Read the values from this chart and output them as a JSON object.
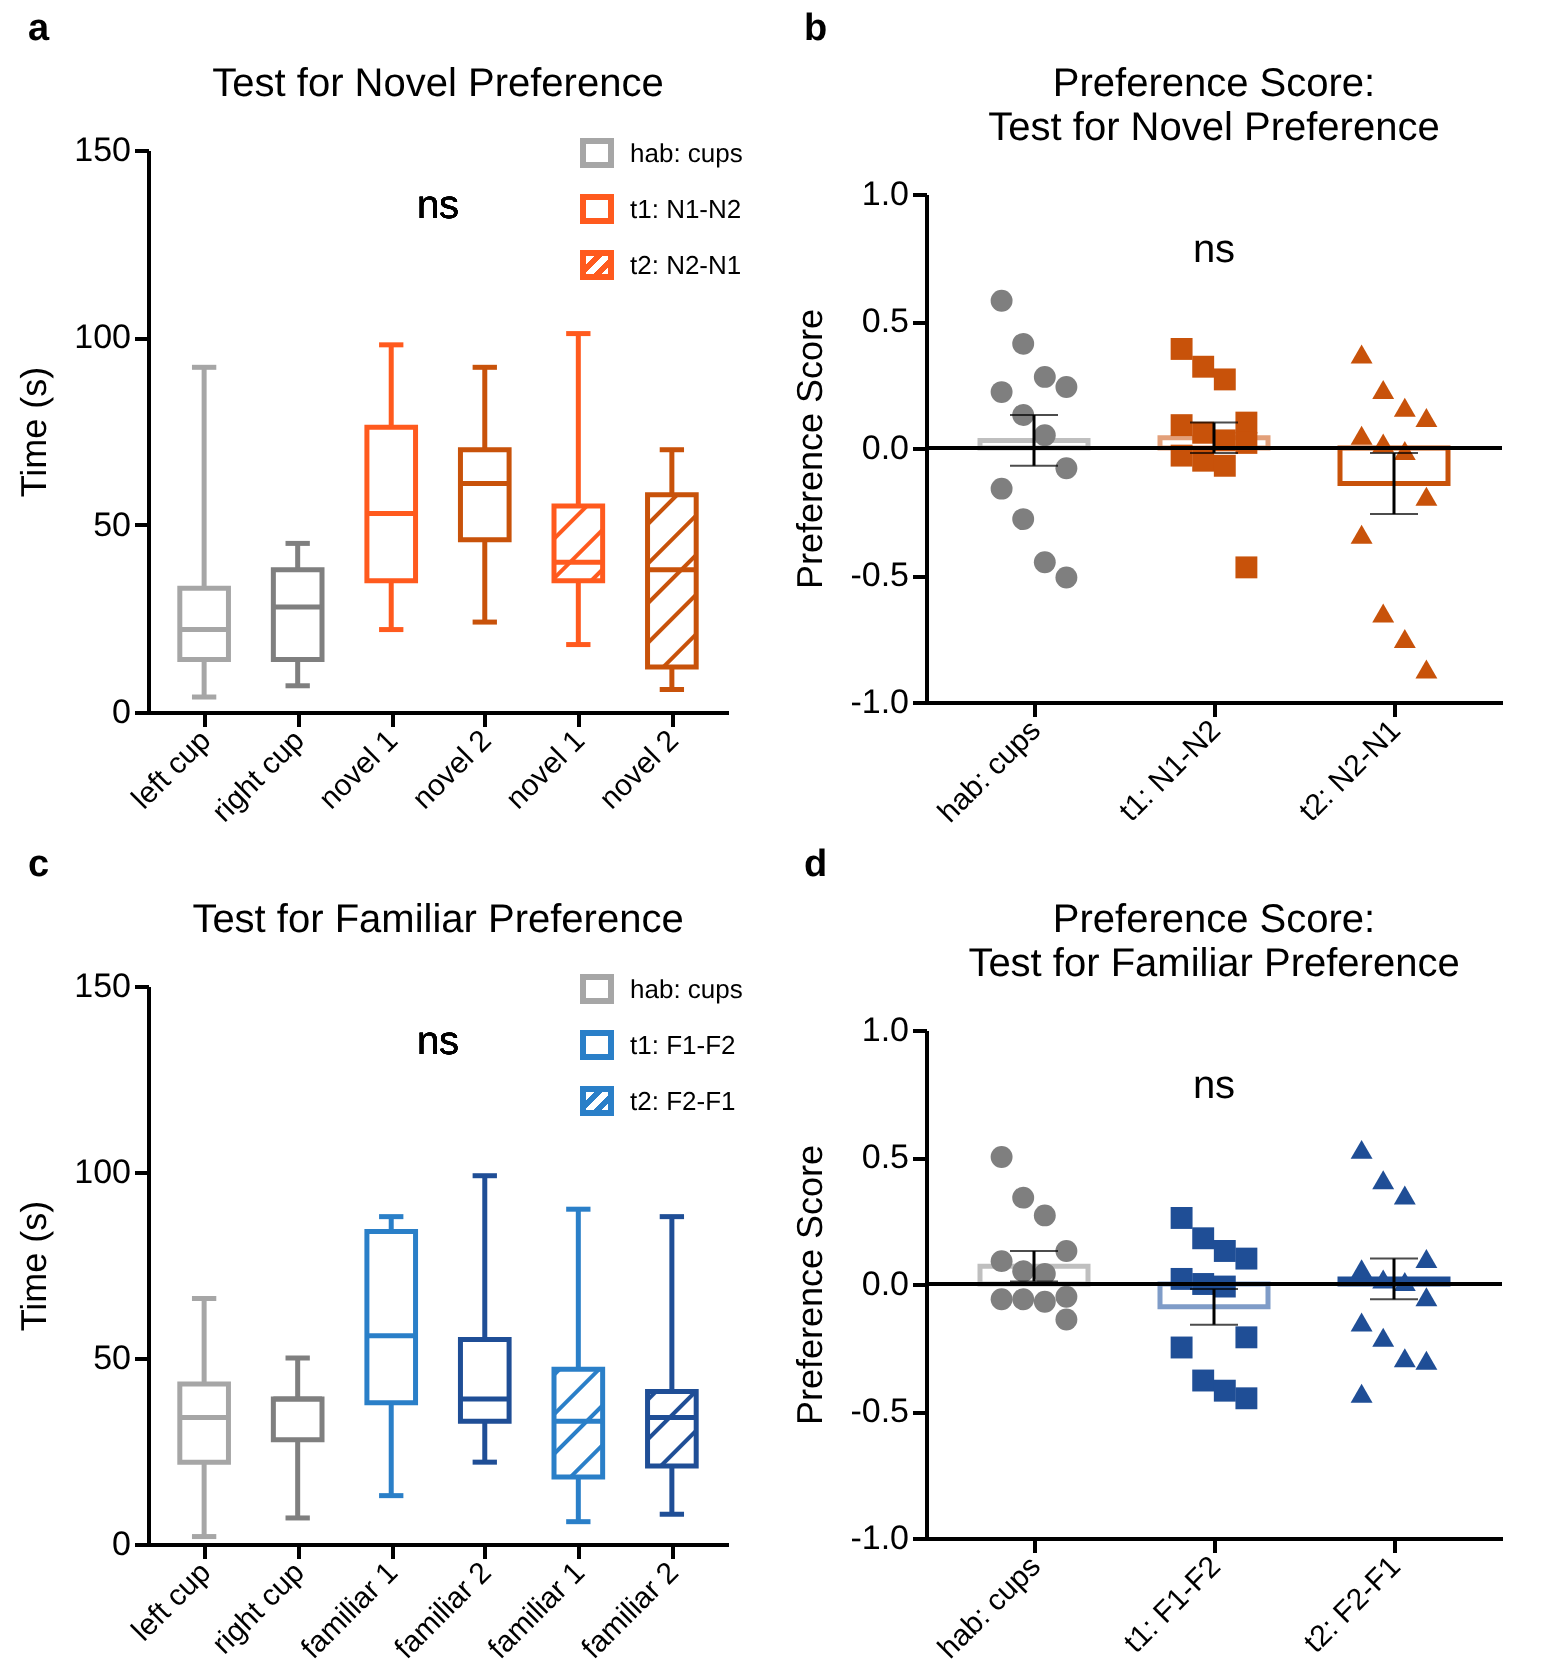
{
  "chart_data": [
    {
      "type": "box",
      "title": "Test for Novel Preference",
      "ylabel": "Time (s)",
      "categories": [
        "left cup",
        "right cup",
        "novel 1",
        "novel 2",
        "novel 1",
        "novel 2"
      ],
      "ylim": [
        0,
        150
      ],
      "yticks": [
        0,
        50,
        100,
        150
      ],
      "legend": "top right",
      "annotations": [
        "a",
        "ns"
      ],
      "series": [
        {
          "name": "hab: cups",
          "colors": [
            "#a6a6a6",
            "#7f7f7f",
            null,
            null,
            null,
            null
          ],
          "boxes": [
            {
              "low": 4,
              "q1": 14,
              "median": 22,
              "q3": 33,
              "high": 92
            },
            {
              "low": 7,
              "q1": 14,
              "median": 28,
              "q3": 38,
              "high": 45
            },
            null,
            null,
            null,
            null
          ]
        },
        {
          "name": "t1: N1-N2",
          "colors": [
            null,
            null,
            "#ff5a1e",
            "#c8520a",
            null,
            null
          ],
          "boxes": [
            null,
            null,
            {
              "low": 22,
              "q1": 35,
              "median": 53,
              "q3": 76,
              "high": 98
            },
            {
              "low": 24,
              "q1": 46,
              "median": 61,
              "q3": 70,
              "high": 92
            },
            null,
            null
          ]
        },
        {
          "name": "t2: N2-N1",
          "colors": [
            null,
            null,
            null,
            null,
            "#ff5a1e",
            "#c8520a"
          ],
          "boxes": [
            null,
            null,
            null,
            null,
            {
              "low": 18,
              "q1": 35,
              "median": 40,
              "q3": 55,
              "high": 101
            },
            {
              "low": 6,
              "q1": 12,
              "median": 38,
              "q3": 58,
              "high": 70
            }
          ]
        }
      ]
    },
    {
      "type": "bar",
      "title": "Preference Score:\nTest for Novel Preference",
      "ylabel": "Preference Score",
      "categories": [
        "hab: cups",
        "t1: N1-N2",
        "t2: N2-N1"
      ],
      "ylim": [
        -1,
        1
      ],
      "yticks": [
        {
          "value": -1,
          "label": "-1.0"
        },
        {
          "value": -0.5,
          "label": "-0.5"
        },
        {
          "value": 0,
          "label": "0.0"
        },
        {
          "value": 0.5,
          "label": "0.5"
        },
        {
          "value": 1,
          "label": "1.0"
        }
      ],
      "ref_lines": [
        {
          "axis": "y",
          "value": 0
        }
      ],
      "annotations": [
        "b",
        "ns"
      ],
      "series": [
        {
          "type": "bar",
          "colors": [
            "#bfbfbf",
            "#e3a07a",
            "#c8520a"
          ],
          "values": [
            0.03,
            0.04,
            -0.14
          ],
          "errors": [
            0.1,
            0.06,
            0.12
          ]
        },
        {
          "type": "scatter",
          "marker": "circle",
          "color": "#7f7f7f",
          "x": [
            "hab: cups",
            "hab: cups",
            "hab: cups",
            "hab: cups",
            "hab: cups",
            "hab: cups",
            "hab: cups",
            "hab: cups",
            "hab: cups",
            "hab: cups",
            "hab: cups",
            "hab: cups"
          ],
          "values": [
            0.58,
            0.41,
            0.28,
            0.24,
            0.22,
            0.13,
            0.05,
            -0.08,
            -0.16,
            -0.28,
            -0.45,
            -0.51
          ]
        },
        {
          "type": "scatter",
          "marker": "square",
          "color": "#c8520a",
          "x": [
            "t1: N1-N2",
            "t1: N1-N2",
            "t1: N1-N2",
            "t1: N1-N2",
            "t1: N1-N2",
            "t1: N1-N2",
            "t1: N1-N2",
            "t1: N1-N2",
            "t1: N1-N2",
            "t1: N1-N2",
            "t1: N1-N2",
            "t1: N1-N2"
          ],
          "values": [
            0.39,
            0.32,
            0.27,
            0.1,
            0.09,
            0.06,
            0.03,
            0.02,
            -0.03,
            -0.05,
            -0.07,
            -0.47
          ]
        },
        {
          "type": "scatter",
          "marker": "triangle",
          "color": "#c8520a",
          "x": [
            "t2: N2-N1",
            "t2: N2-N1",
            "t2: N2-N1",
            "t2: N2-N1",
            "t2: N2-N1",
            "t2: N2-N1",
            "t2: N2-N1",
            "t2: N2-N1",
            "t2: N2-N1",
            "t2: N2-N1",
            "t2: N2-N1",
            "t2: N2-N1"
          ],
          "values": [
            0.37,
            0.23,
            0.16,
            0.12,
            0.05,
            0.02,
            -0.01,
            -0.19,
            -0.34,
            -0.65,
            -0.75,
            -0.87
          ]
        }
      ]
    },
    {
      "type": "box",
      "title": "Test for Familiar Preference",
      "ylabel": "Time (s)",
      "categories": [
        "left cup",
        "right cup",
        "familiar 1",
        "familiar 2",
        "familiar 1",
        "familiar 2"
      ],
      "ylim": [
        0,
        150
      ],
      "yticks": [
        0,
        50,
        100,
        150
      ],
      "legend": "top right",
      "annotations": [
        "c",
        "ns"
      ],
      "series": [
        {
          "name": "hab: cups",
          "colors": [
            "#a6a6a6",
            "#7f7f7f",
            null,
            null,
            null,
            null
          ],
          "boxes": [
            {
              "low": 2,
              "q1": 22,
              "median": 34,
              "q3": 43,
              "high": 66
            },
            {
              "low": 7,
              "q1": 28,
              "median": 39,
              "q3": 39,
              "high": 50
            },
            null,
            null,
            null,
            null
          ]
        },
        {
          "name": "t1: F1-F2",
          "colors": [
            null,
            null,
            "#2a7fc8",
            "#1f4e96",
            null,
            null
          ],
          "boxes": [
            null,
            null,
            {
              "low": 13,
              "q1": 38,
              "median": 56,
              "q3": 84,
              "high": 88
            },
            {
              "low": 22,
              "q1": 33,
              "median": 39,
              "q3": 55,
              "high": 99
            },
            null,
            null
          ]
        },
        {
          "name": "t2: F2-F1",
          "colors": [
            null,
            null,
            null,
            null,
            "#2a7fc8",
            "#1f4e96"
          ],
          "boxes": [
            null,
            null,
            null,
            null,
            {
              "low": 6,
              "q1": 18,
              "median": 33,
              "q3": 47,
              "high": 90
            },
            {
              "low": 8,
              "q1": 21,
              "median": 34,
              "q3": 41,
              "high": 88
            }
          ]
        }
      ]
    },
    {
      "type": "bar",
      "title": "Preference Score:\nTest for Familiar Preference",
      "ylabel": "Preference Score",
      "categories": [
        "hab: cups",
        "t1: F1-F2",
        "t2: F2-F1"
      ],
      "ylim": [
        -1,
        1
      ],
      "yticks": [
        {
          "value": -1,
          "label": "-1.0"
        },
        {
          "value": -0.5,
          "label": "-0.5"
        },
        {
          "value": 0,
          "label": "0.0"
        },
        {
          "value": 0.5,
          "label": "0.5"
        },
        {
          "value": 1,
          "label": "1.0"
        }
      ],
      "ref_lines": [
        {
          "axis": "y",
          "value": 0
        }
      ],
      "annotations": [
        "d",
        "ns"
      ],
      "series": [
        {
          "type": "bar",
          "colors": [
            "#bfbfbf",
            "#7f9cc8",
            "#1f4e96"
          ],
          "values": [
            0.07,
            -0.09,
            0.02
          ],
          "errors": [
            0.06,
            0.07,
            0.08
          ]
        },
        {
          "type": "scatter",
          "marker": "circle",
          "color": "#7f7f7f",
          "x": [
            "hab: cups",
            "hab: cups",
            "hab: cups",
            "hab: cups",
            "hab: cups",
            "hab: cups",
            "hab: cups",
            "hab: cups",
            "hab: cups",
            "hab: cups",
            "hab: cups",
            "hab: cups"
          ],
          "values": [
            0.5,
            0.34,
            0.27,
            0.13,
            0.09,
            0.05,
            0.04,
            -0.05,
            -0.06,
            -0.06,
            -0.07,
            -0.14
          ]
        },
        {
          "type": "scatter",
          "marker": "square",
          "color": "#1f4e96",
          "x": [
            "t1: F1-F2",
            "t1: F1-F2",
            "t1: F1-F2",
            "t1: F1-F2",
            "t1: F1-F2",
            "t1: F1-F2",
            "t1: F1-F2",
            "t1: F1-F2",
            "t1: F1-F2",
            "t1: F1-F2",
            "t1: F1-F2",
            "t1: F1-F2"
          ],
          "values": [
            0.26,
            0.18,
            0.13,
            0.1,
            0.02,
            0.0,
            -0.01,
            -0.21,
            -0.25,
            -0.38,
            -0.42,
            -0.45
          ]
        },
        {
          "type": "scatter",
          "marker": "triangle",
          "color": "#1f4e96",
          "x": [
            "t2: F2-F1",
            "t2: F2-F1",
            "t2: F2-F1",
            "t2: F2-F1",
            "t2: F2-F1",
            "t2: F2-F1",
            "t2: F2-F1",
            "t2: F2-F1",
            "t2: F2-F1",
            "t2: F2-F1",
            "t2: F2-F1",
            "t2: F2-F1",
            "t2: F2-F1"
          ],
          "values": [
            0.53,
            0.41,
            0.35,
            0.1,
            0.06,
            0.02,
            0.01,
            -0.05,
            -0.15,
            -0.21,
            -0.29,
            -0.3,
            -0.43
          ]
        }
      ]
    }
  ]
}
